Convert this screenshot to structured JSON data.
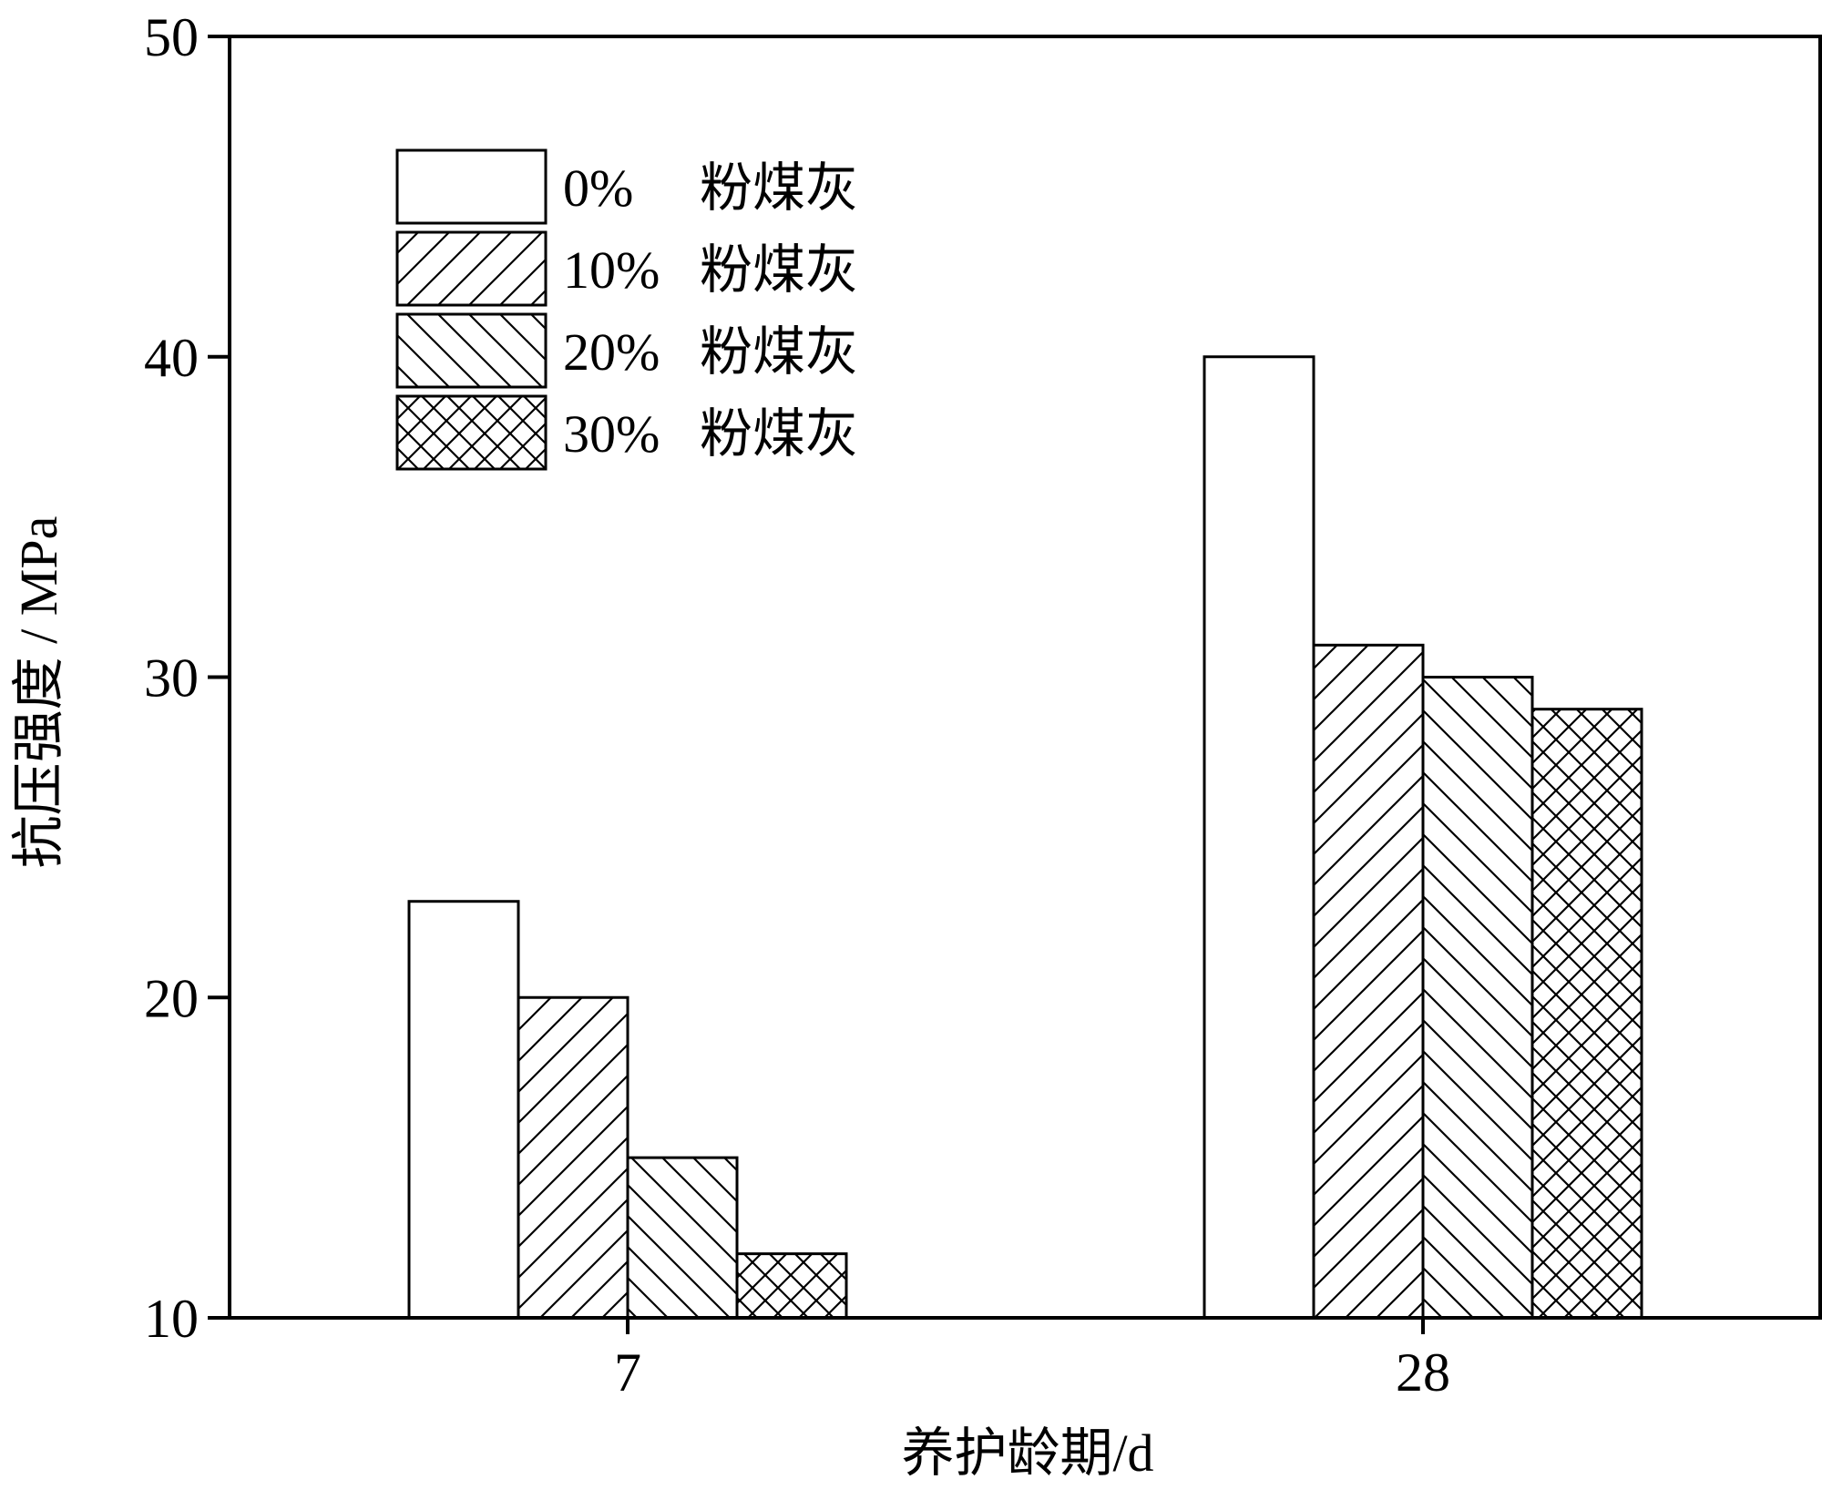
{
  "chart_data": {
    "type": "bar",
    "title": "",
    "xlabel": "养护龄期/d",
    "ylabel": "抗压强度 / MPa",
    "ylim": [
      10,
      50
    ],
    "yticks": [
      10,
      20,
      30,
      40,
      50
    ],
    "categories": [
      "7",
      "28"
    ],
    "grid": false,
    "legend_position": "top-left",
    "series": [
      {
        "name": "0%",
        "suffix": "粉煤灰",
        "pattern": "none",
        "values": [
          23,
          40
        ]
      },
      {
        "name": "10%",
        "suffix": "粉煤灰",
        "pattern": "forward-diagonal",
        "values": [
          20,
          31
        ]
      },
      {
        "name": "20%",
        "suffix": "粉煤灰",
        "pattern": "backward-diagonal",
        "values": [
          15,
          30
        ]
      },
      {
        "name": "30%",
        "suffix": "粉煤灰",
        "pattern": "crosshatch",
        "values": [
          12,
          29
        ]
      }
    ],
    "colors": {
      "stroke": "#000000",
      "fill": "#ffffff"
    }
  }
}
